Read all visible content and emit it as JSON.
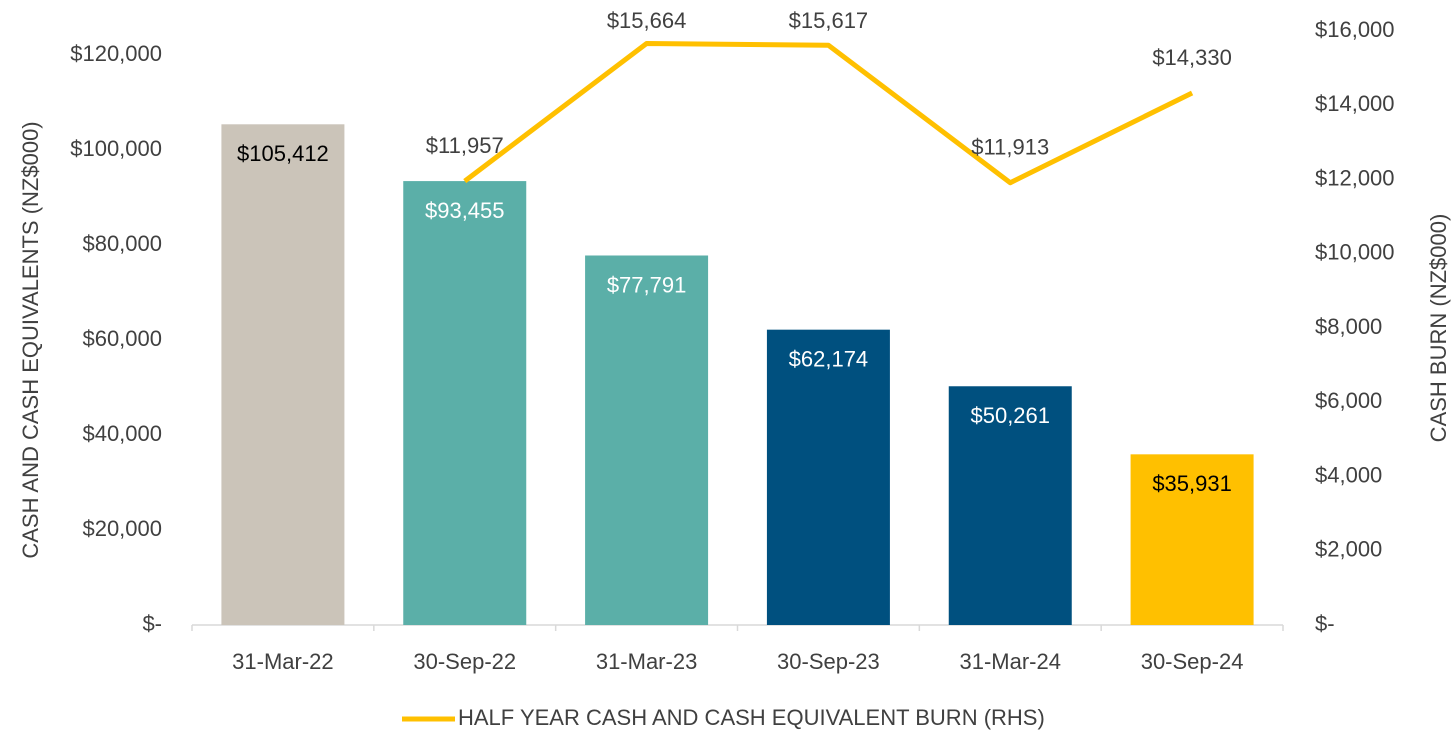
{
  "chart_data": {
    "type": "bar_line",
    "categories": [
      "31-Mar-22",
      "30-Sep-22",
      "31-Mar-23",
      "30-Sep-23",
      "31-Mar-24",
      "30-Sep-24"
    ],
    "series": [
      {
        "type": "bar",
        "colors": [
          "#cbc4b9",
          "#5bafa8",
          "#5bafa8",
          "#00507f",
          "#00507f",
          "#ffc000"
        ],
        "values": [
          105412,
          93455,
          77791,
          62174,
          50261,
          35931
        ],
        "value_labels": [
          "$105,412",
          "$93,455",
          "$77,791",
          "$62,174",
          "$50,261",
          "$35,931"
        ]
      },
      {
        "type": "line",
        "name": "HALF YEAR CASH AND CASH EQUIVALENT BURN (RHS)",
        "color": "#ffc000",
        "axis": "y2",
        "values": [
          null,
          11957,
          15664,
          15617,
          11913,
          14330
        ],
        "value_labels": [
          null,
          "$11,957",
          "$15,664",
          "$15,617",
          "$11,913",
          "$14,330"
        ]
      }
    ],
    "y_label": "CASH AND CASH EQUIVALENTS (NZ$000)",
    "y2_label": "CASH BURN (NZ$000)",
    "ylim": [
      0,
      120000
    ],
    "yticks": [
      {
        "value": 0,
        "label": "$-"
      },
      {
        "value": 20000,
        "label": "$20,000"
      },
      {
        "value": 40000,
        "label": "$40,000"
      },
      {
        "value": 60000,
        "label": "$60,000"
      },
      {
        "value": 80000,
        "label": "$80,000"
      },
      {
        "value": 100000,
        "label": "$100,000"
      },
      {
        "value": 120000,
        "label": "$120,000"
      }
    ],
    "y2lim": [
      0,
      16000
    ],
    "y2ticks": [
      {
        "value": 0,
        "label": "$-"
      },
      {
        "value": 2000,
        "label": "$2,000"
      },
      {
        "value": 4000,
        "label": "$4,000"
      },
      {
        "value": 6000,
        "label": "$6,000"
      },
      {
        "value": 8000,
        "label": "$8,000"
      },
      {
        "value": 10000,
        "label": "$10,000"
      },
      {
        "value": 12000,
        "label": "$12,000"
      },
      {
        "value": 14000,
        "label": "$14,000"
      },
      {
        "value": 16000,
        "label": "$16,000"
      }
    ],
    "legend": "bottom",
    "grid": false
  }
}
